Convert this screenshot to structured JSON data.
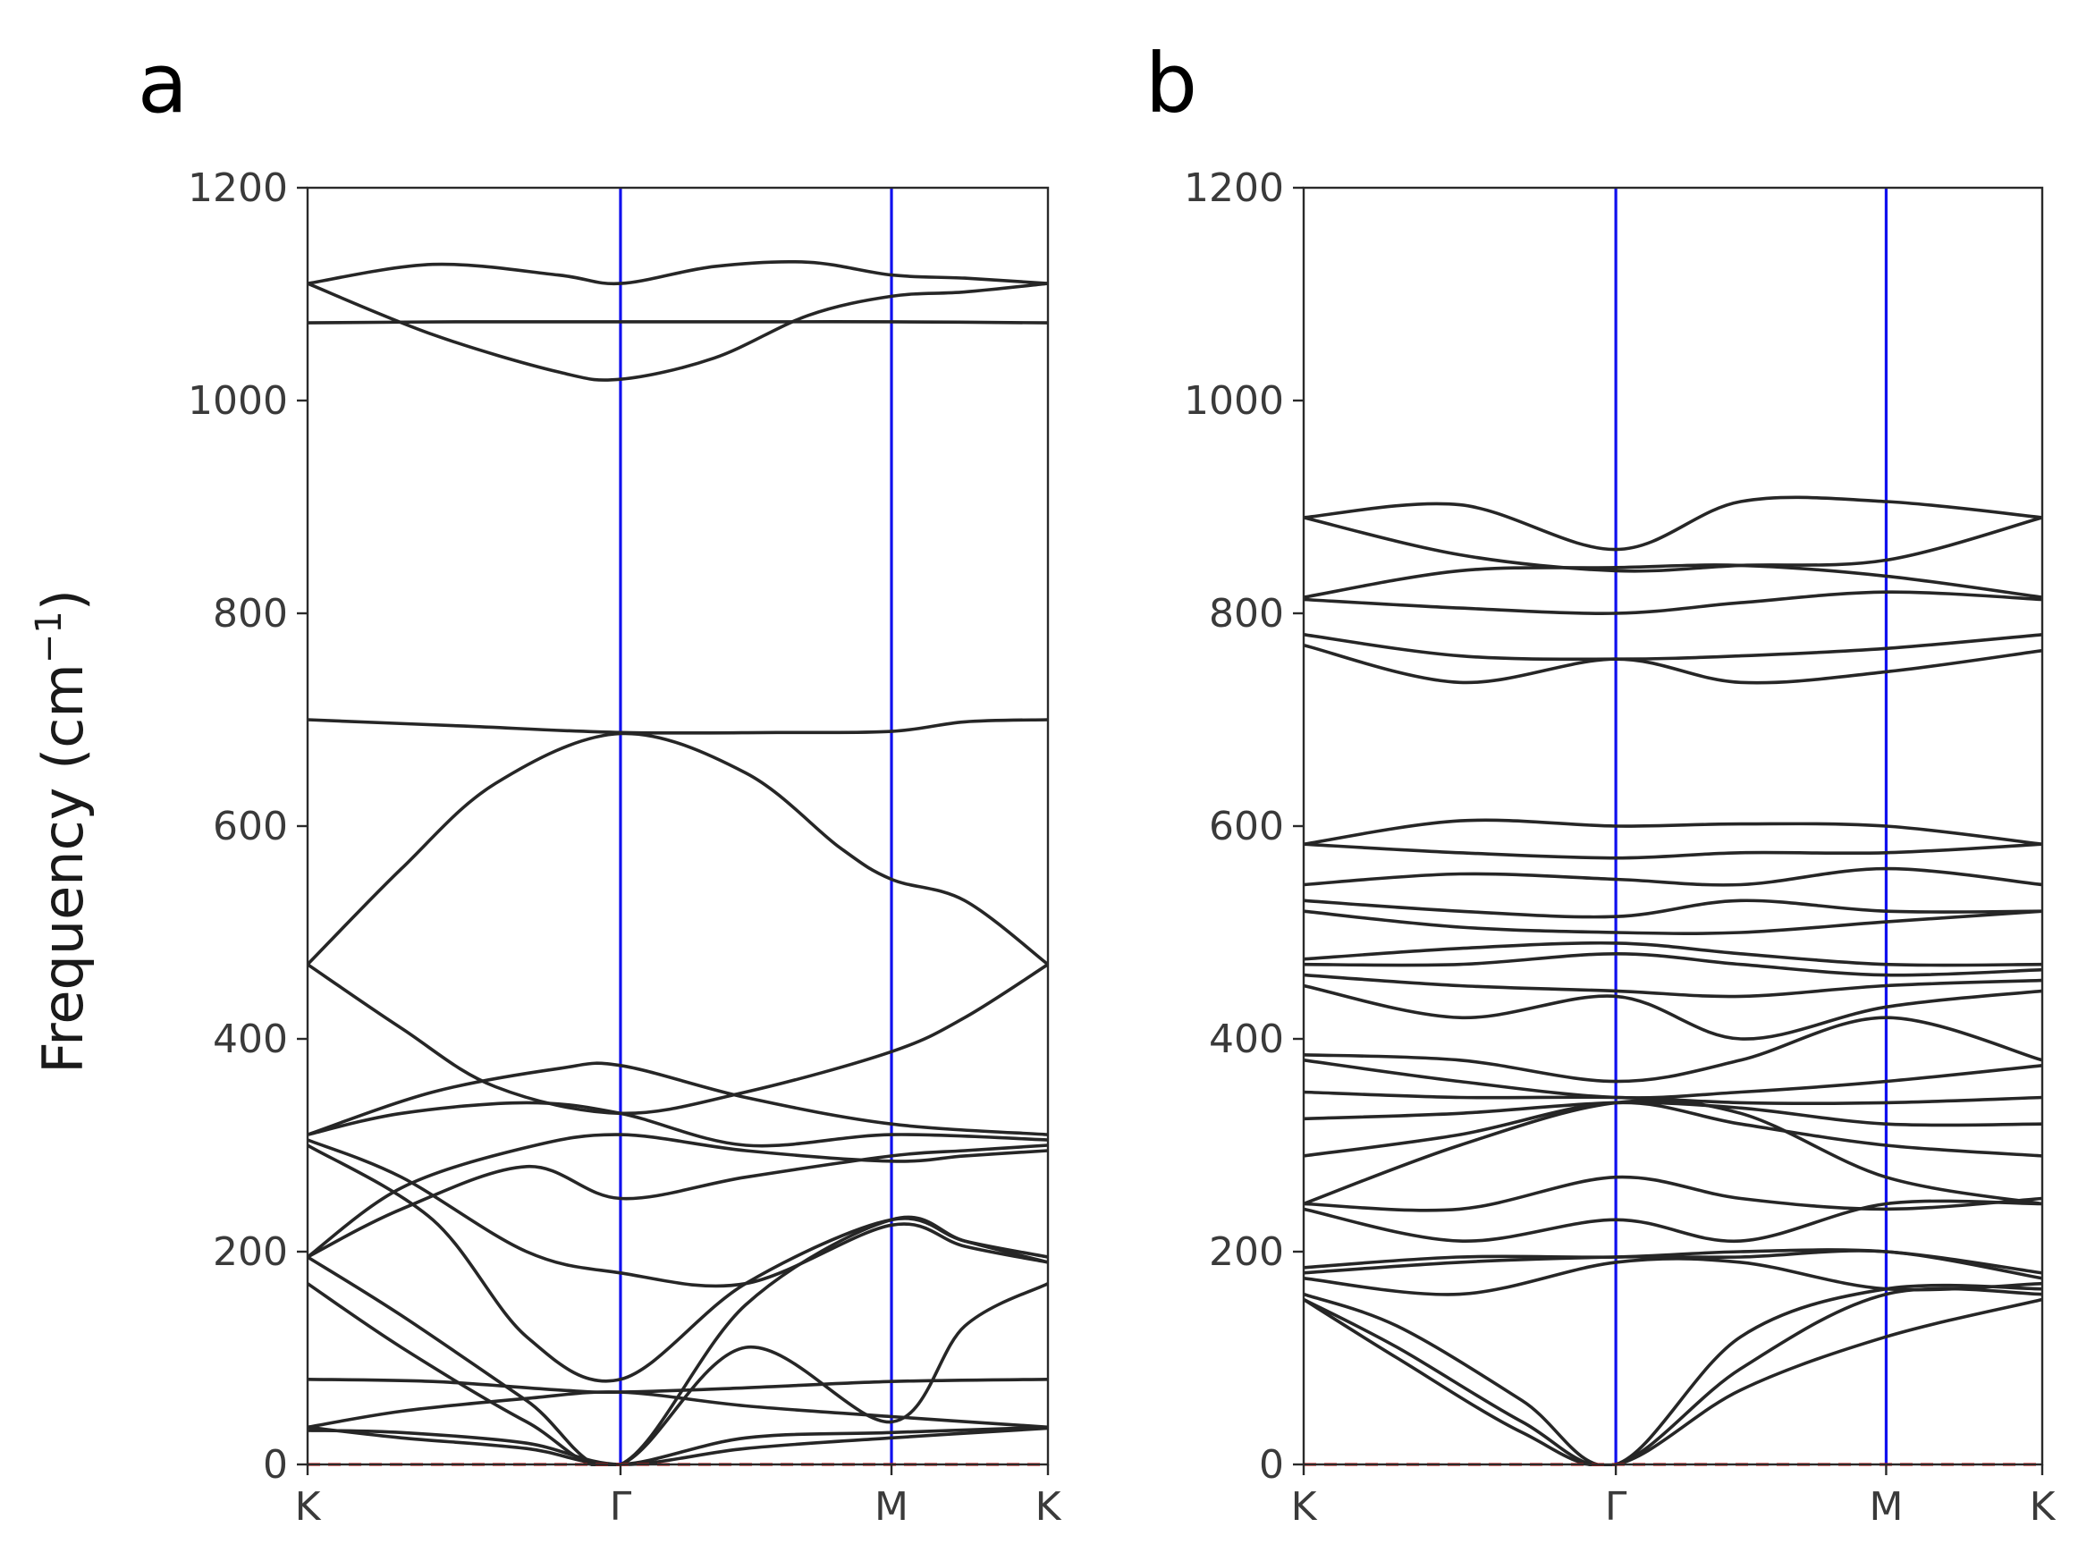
{
  "ylabel": "Frequency (cm",
  "ylabel_sup": "−1",
  "ylabel_close": ")",
  "chart_data": [
    {
      "type": "line",
      "panel_label": "a",
      "ylim": [
        0,
        1200
      ],
      "yticks": [
        "0",
        "200",
        "400",
        "600",
        "800",
        "1000",
        "1200"
      ],
      "xticks": [
        "K",
        "Γ",
        "M",
        "K"
      ],
      "high_symmetry_positions": [
        0,
        1,
        1.866,
        2.366
      ],
      "zero_line": 0,
      "bands": [
        {
          "x": [
            0,
            0.4,
            0.8,
            1,
            1.3,
            1.6,
            1.866,
            2.1,
            2.366
          ],
          "y": [
            1110,
            1128,
            1118,
            1110,
            1126,
            1130,
            1118,
            1115,
            1110
          ]
        },
        {
          "x": [
            0,
            0.4,
            0.8,
            1,
            1.3,
            1.6,
            1.866,
            2.1,
            2.366
          ],
          "y": [
            1110,
            1062,
            1027,
            1020,
            1040,
            1080,
            1098,
            1102,
            1110
          ]
        },
        {
          "x": [
            0,
            0.5,
            1,
            1.5,
            1.866,
            2.366
          ],
          "y": [
            1073,
            1074,
            1074,
            1074,
            1074,
            1073
          ]
        },
        {
          "x": [
            0,
            0.5,
            1,
            1.5,
            1.866,
            2.1,
            2.366
          ],
          "y": [
            700,
            694,
            688,
            688,
            689,
            698,
            700
          ]
        },
        {
          "x": [
            0,
            0.3,
            0.6,
            1,
            1.4,
            1.7,
            1.866,
            2.1,
            2.366
          ],
          "y": [
            470,
            560,
            640,
            687,
            650,
            580,
            550,
            530,
            470
          ]
        },
        {
          "x": [
            0,
            0.3,
            0.6,
            1,
            1.4,
            1.866,
            2.1,
            2.366
          ],
          "y": [
            470,
            410,
            355,
            330,
            350,
            388,
            420,
            470
          ]
        },
        {
          "x": [
            0,
            0.4,
            0.8,
            1,
            1.4,
            1.866,
            2.366
          ],
          "y": [
            310,
            350,
            372,
            375,
            345,
            320,
            310
          ]
        },
        {
          "x": [
            0,
            0.3,
            0.7,
            1,
            1.4,
            1.866,
            2.366
          ],
          "y": [
            310,
            330,
            340,
            330,
            300,
            310,
            305
          ]
        },
        {
          "x": [
            0,
            0.3,
            0.7,
            1,
            1.4,
            1.866,
            2.1,
            2.366
          ],
          "y": [
            195,
            260,
            298,
            310,
            295,
            285,
            290,
            295
          ]
        },
        {
          "x": [
            0,
            0.3,
            0.7,
            1,
            1.4,
            1.866,
            2.1,
            2.366
          ],
          "y": [
            195,
            240,
            280,
            250,
            270,
            290,
            295,
            300
          ]
        },
        {
          "x": [
            0,
            0.4,
            0.7,
            1,
            1.4,
            1.866,
            2.1,
            2.366
          ],
          "y": [
            300,
            230,
            120,
            80,
            170,
            230,
            210,
            195
          ]
        },
        {
          "x": [
            0,
            0.3,
            0.7,
            1,
            1.4,
            1.866,
            2.1,
            2.366
          ],
          "y": [
            305,
            270,
            200,
            180,
            170,
            225,
            205,
            190
          ]
        },
        {
          "x": [
            0,
            0.3,
            0.7,
            1,
            1.4,
            1.866,
            2.1,
            2.366
          ],
          "y": [
            195,
            140,
            60,
            0,
            150,
            230,
            210,
            190
          ]
        },
        {
          "x": [
            0,
            0.3,
            0.7,
            1,
            1.4,
            1.866,
            2.1,
            2.366
          ],
          "y": [
            170,
            110,
            40,
            0,
            110,
            40,
            130,
            170
          ]
        },
        {
          "x": [
            0,
            0.4,
            0.8,
            1,
            1.4,
            1.866,
            2.366
          ],
          "y": [
            80,
            78,
            70,
            68,
            72,
            78,
            80
          ]
        },
        {
          "x": [
            0,
            0.3,
            0.7,
            1,
            1.4,
            1.866,
            2.366
          ],
          "y": [
            35,
            50,
            62,
            68,
            55,
            45,
            35
          ]
        },
        {
          "x": [
            0,
            0.3,
            0.7,
            1,
            1.4,
            1.866,
            2.366
          ],
          "y": [
            35,
            25,
            15,
            0,
            25,
            30,
            35
          ]
        },
        {
          "x": [
            0,
            0.3,
            0.7,
            1,
            1.4,
            1.866,
            2.366
          ],
          "y": [
            32,
            30,
            20,
            0,
            15,
            25,
            34
          ]
        }
      ]
    },
    {
      "type": "line",
      "panel_label": "b",
      "ylim": [
        0,
        1200
      ],
      "yticks": [
        "0",
        "200",
        "400",
        "600",
        "800",
        "1000",
        "1200"
      ],
      "xticks": [
        "K",
        "Γ",
        "M",
        "K"
      ],
      "high_symmetry_positions": [
        0,
        1,
        1.866,
        2.366
      ],
      "zero_line": 0,
      "bands": [
        {
          "x": [
            0,
            0.5,
            1,
            1.4,
            1.866,
            2.366
          ],
          "y": [
            890,
            902,
            860,
            905,
            905,
            890
          ]
        },
        {
          "x": [
            0,
            0.5,
            1,
            1.4,
            1.866,
            2.366
          ],
          "y": [
            890,
            855,
            840,
            845,
            850,
            890
          ]
        },
        {
          "x": [
            0,
            0.5,
            1,
            1.4,
            1.866,
            2.366
          ],
          "y": [
            815,
            840,
            843,
            845,
            835,
            815
          ]
        },
        {
          "x": [
            0,
            0.5,
            1,
            1.4,
            1.866,
            2.366
          ],
          "y": [
            813,
            805,
            800,
            810,
            820,
            813
          ]
        },
        {
          "x": [
            0,
            0.5,
            1,
            1.4,
            1.866,
            2.366
          ],
          "y": [
            780,
            760,
            757,
            760,
            767,
            780
          ]
        },
        {
          "x": [
            0,
            0.5,
            1,
            1.4,
            1.866,
            2.366
          ],
          "y": [
            770,
            735,
            757,
            735,
            745,
            765
          ]
        },
        {
          "x": [
            0,
            0.5,
            1,
            1.4,
            1.866,
            2.366
          ],
          "y": [
            583,
            605,
            600,
            602,
            600,
            583
          ]
        },
        {
          "x": [
            0,
            0.5,
            1,
            1.4,
            1.866,
            2.366
          ],
          "y": [
            583,
            575,
            570,
            575,
            575,
            583
          ]
        },
        {
          "x": [
            0,
            0.5,
            1,
            1.4,
            1.866,
            2.366
          ],
          "y": [
            545,
            555,
            550,
            545,
            560,
            545
          ]
        },
        {
          "x": [
            0,
            0.5,
            1,
            1.4,
            1.866,
            2.366
          ],
          "y": [
            530,
            520,
            515,
            530,
            520,
            520
          ]
        },
        {
          "x": [
            0,
            0.5,
            1,
            1.4,
            1.866,
            2.366
          ],
          "y": [
            520,
            505,
            500,
            500,
            510,
            520
          ]
        },
        {
          "x": [
            0,
            0.5,
            1,
            1.4,
            1.866,
            2.366
          ],
          "y": [
            475,
            485,
            490,
            480,
            470,
            470
          ]
        },
        {
          "x": [
            0,
            0.5,
            1,
            1.4,
            1.866,
            2.366
          ],
          "y": [
            470,
            470,
            480,
            470,
            460,
            465
          ]
        },
        {
          "x": [
            0,
            0.5,
            1,
            1.4,
            1.866,
            2.366
          ],
          "y": [
            460,
            450,
            445,
            440,
            450,
            455
          ]
        },
        {
          "x": [
            0,
            0.5,
            1,
            1.4,
            1.866,
            2.366
          ],
          "y": [
            450,
            420,
            440,
            400,
            430,
            445
          ]
        },
        {
          "x": [
            0,
            0.5,
            1,
            1.4,
            1.866,
            2.366
          ],
          "y": [
            385,
            380,
            360,
            380,
            420,
            380
          ]
        },
        {
          "x": [
            0,
            0.5,
            1,
            1.4,
            1.866,
            2.366
          ],
          "y": [
            380,
            360,
            345,
            350,
            360,
            375
          ]
        },
        {
          "x": [
            0,
            0.5,
            1,
            1.4,
            1.866,
            2.366
          ],
          "y": [
            350,
            345,
            345,
            340,
            340,
            345
          ]
        },
        {
          "x": [
            0,
            0.5,
            1,
            1.4,
            1.866,
            2.366
          ],
          "y": [
            325,
            330,
            340,
            335,
            320,
            320
          ]
        },
        {
          "x": [
            0,
            0.5,
            1,
            1.4,
            1.866,
            2.366
          ],
          "y": [
            290,
            310,
            340,
            320,
            300,
            290
          ]
        },
        {
          "x": [
            0,
            0.5,
            1,
            1.4,
            1.866,
            2.366
          ],
          "y": [
            245,
            300,
            340,
            330,
            270,
            245
          ]
        },
        {
          "x": [
            0,
            0.5,
            1,
            1.4,
            1.866,
            2.366
          ],
          "y": [
            245,
            240,
            270,
            250,
            240,
            250
          ]
        },
        {
          "x": [
            0,
            0.5,
            1,
            1.4,
            1.866,
            2.366
          ],
          "y": [
            240,
            210,
            230,
            210,
            245,
            245
          ]
        },
        {
          "x": [
            0,
            0.5,
            1,
            1.4,
            1.866,
            2.366
          ],
          "y": [
            185,
            195,
            195,
            200,
            200,
            180
          ]
        },
        {
          "x": [
            0,
            0.5,
            1,
            1.4,
            1.866,
            2.366
          ],
          "y": [
            180,
            190,
            195,
            195,
            200,
            175
          ]
        },
        {
          "x": [
            0,
            0.5,
            1,
            1.4,
            1.866,
            2.366
          ],
          "y": [
            175,
            160,
            190,
            190,
            165,
            170
          ]
        },
        {
          "x": [
            0,
            0.3,
            0.7,
            1,
            1.4,
            1.866,
            2.366
          ],
          "y": [
            160,
            130,
            60,
            0,
            120,
            165,
            165
          ]
        },
        {
          "x": [
            0,
            0.3,
            0.7,
            1,
            1.4,
            1.866,
            2.366
          ],
          "y": [
            155,
            110,
            40,
            0,
            90,
            160,
            160
          ]
        },
        {
          "x": [
            0,
            0.3,
            0.7,
            1,
            1.4,
            1.866,
            2.366
          ],
          "y": [
            155,
            100,
            30,
            0,
            70,
            120,
            155
          ]
        }
      ]
    }
  ]
}
